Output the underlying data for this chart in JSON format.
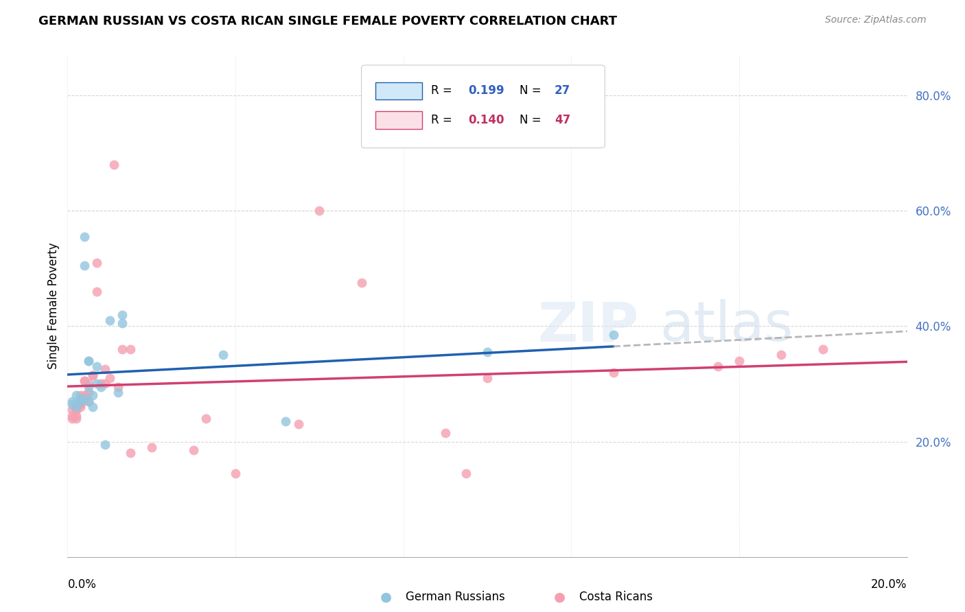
{
  "title": "GERMAN RUSSIAN VS COSTA RICAN SINGLE FEMALE POVERTY CORRELATION CHART",
  "source": "Source: ZipAtlas.com",
  "ylabel": "Single Female Poverty",
  "xlim": [
    0.0,
    0.2
  ],
  "ylim": [
    0.0,
    0.87
  ],
  "y_ticks": [
    0.2,
    0.4,
    0.6,
    0.8
  ],
  "y_tick_labels": [
    "20.0%",
    "40.0%",
    "60.0%",
    "80.0%"
  ],
  "color_blue": "#92c5de",
  "color_pink": "#f4a0b0",
  "color_blue_line": "#2060b0",
  "color_pink_line": "#d04070",
  "color_blue_legend_fill": "#d0e8f8",
  "color_pink_legend_fill": "#fce0e8",
  "german_russians_x": [
    0.001,
    0.001,
    0.002,
    0.002,
    0.003,
    0.003,
    0.004,
    0.004,
    0.004,
    0.005,
    0.005,
    0.005,
    0.005,
    0.006,
    0.006,
    0.007,
    0.007,
    0.008,
    0.009,
    0.01,
    0.012,
    0.013,
    0.013,
    0.037,
    0.052,
    0.1,
    0.13
  ],
  "german_russians_y": [
    0.27,
    0.265,
    0.26,
    0.28,
    0.27,
    0.275,
    0.555,
    0.505,
    0.275,
    0.34,
    0.34,
    0.295,
    0.27,
    0.28,
    0.26,
    0.33,
    0.3,
    0.295,
    0.195,
    0.41,
    0.285,
    0.405,
    0.42,
    0.35,
    0.235,
    0.355,
    0.385
  ],
  "costa_ricans_x": [
    0.001,
    0.001,
    0.001,
    0.002,
    0.002,
    0.002,
    0.002,
    0.002,
    0.003,
    0.003,
    0.003,
    0.003,
    0.003,
    0.004,
    0.004,
    0.004,
    0.005,
    0.005,
    0.005,
    0.006,
    0.006,
    0.007,
    0.007,
    0.008,
    0.009,
    0.009,
    0.01,
    0.011,
    0.012,
    0.013,
    0.015,
    0.015,
    0.02,
    0.03,
    0.033,
    0.04,
    0.055,
    0.06,
    0.07,
    0.09,
    0.095,
    0.1,
    0.13,
    0.155,
    0.16,
    0.17,
    0.18
  ],
  "costa_ricans_y": [
    0.245,
    0.255,
    0.24,
    0.255,
    0.265,
    0.255,
    0.245,
    0.24,
    0.27,
    0.28,
    0.265,
    0.26,
    0.265,
    0.305,
    0.305,
    0.28,
    0.285,
    0.3,
    0.27,
    0.315,
    0.315,
    0.46,
    0.51,
    0.3,
    0.325,
    0.3,
    0.31,
    0.68,
    0.295,
    0.36,
    0.36,
    0.18,
    0.19,
    0.185,
    0.24,
    0.145,
    0.23,
    0.6,
    0.475,
    0.215,
    0.145,
    0.31,
    0.32,
    0.33,
    0.34,
    0.35,
    0.36
  ]
}
